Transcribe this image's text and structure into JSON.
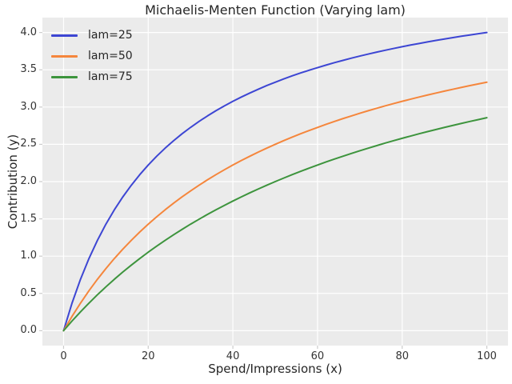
{
  "title": "Michaelis-Menten Function (Varying lam)",
  "colors": {
    "figure_bg": "#ffffff",
    "plot_bg": "#ebebeb",
    "grid": "#ffffff",
    "tick_mark": "#cccccc",
    "text": "#262626"
  },
  "chart_data": {
    "type": "line",
    "title": "Michaelis-Menten Function (Varying lam)",
    "xlabel": "Spend/Impressions (x)",
    "ylabel": "Contribution (y)",
    "xlim": [
      -5,
      105
    ],
    "ylim": [
      -0.2,
      4.2
    ],
    "grid": true,
    "legend_position": "upper-left",
    "xticks": [
      0,
      20,
      40,
      60,
      80,
      100
    ],
    "xtick_labels": [
      "0",
      "20",
      "40",
      "60",
      "80",
      "100"
    ],
    "yticks": [
      0.0,
      0.5,
      1.0,
      1.5,
      2.0,
      2.5,
      3.0,
      3.5,
      4.0
    ],
    "ytick_labels": [
      "0.0",
      "0.5",
      "1.0",
      "1.5",
      "2.0",
      "2.5",
      "3.0",
      "3.5",
      "4.0"
    ],
    "x": [
      0,
      2,
      4,
      6,
      8,
      10,
      12,
      14,
      16,
      18,
      20,
      22,
      24,
      26,
      28,
      30,
      32,
      34,
      36,
      38,
      40,
      42,
      44,
      46,
      48,
      50,
      52,
      54,
      56,
      58,
      60,
      62,
      64,
      66,
      68,
      70,
      72,
      74,
      76,
      78,
      80,
      82,
      84,
      86,
      88,
      90,
      92,
      94,
      96,
      98,
      100
    ],
    "series": [
      {
        "name": "lam=25",
        "color": "#3d46d3",
        "values": [
          0.0,
          0.37,
          0.69,
          0.968,
          1.212,
          1.429,
          1.622,
          1.795,
          1.951,
          2.093,
          2.222,
          2.34,
          2.449,
          2.549,
          2.642,
          2.727,
          2.807,
          2.881,
          2.951,
          3.016,
          3.077,
          3.134,
          3.188,
          3.239,
          3.288,
          3.333,
          3.377,
          3.418,
          3.457,
          3.494,
          3.529,
          3.563,
          3.596,
          3.626,
          3.656,
          3.684,
          3.711,
          3.737,
          3.762,
          3.786,
          3.81,
          3.832,
          3.853,
          3.874,
          3.894,
          3.913,
          3.932,
          3.95,
          3.967,
          3.984,
          4.0
        ]
      },
      {
        "name": "lam=50",
        "color": "#f5863c",
        "values": [
          0.0,
          0.192,
          0.37,
          0.536,
          0.69,
          0.833,
          0.968,
          1.094,
          1.212,
          1.324,
          1.429,
          1.528,
          1.622,
          1.711,
          1.795,
          1.875,
          1.951,
          2.024,
          2.093,
          2.159,
          2.222,
          2.283,
          2.34,
          2.396,
          2.449,
          2.5,
          2.549,
          2.596,
          2.642,
          2.685,
          2.727,
          2.768,
          2.807,
          2.845,
          2.881,
          2.917,
          2.951,
          2.984,
          3.016,
          3.047,
          3.077,
          3.106,
          3.134,
          3.162,
          3.188,
          3.214,
          3.239,
          3.264,
          3.288,
          3.311,
          3.333
        ]
      },
      {
        "name": "lam=75",
        "color": "#3d943d",
        "values": [
          0.0,
          0.13,
          0.253,
          0.37,
          0.482,
          0.588,
          0.69,
          0.787,
          0.879,
          0.968,
          1.053,
          1.134,
          1.212,
          1.287,
          1.359,
          1.429,
          1.495,
          1.56,
          1.622,
          1.681,
          1.739,
          1.795,
          1.849,
          1.901,
          1.951,
          2.0,
          2.047,
          2.093,
          2.137,
          2.18,
          2.222,
          2.263,
          2.302,
          2.34,
          2.378,
          2.414,
          2.449,
          2.483,
          2.517,
          2.549,
          2.581,
          2.611,
          2.642,
          2.671,
          2.699,
          2.727,
          2.754,
          2.781,
          2.807,
          2.832,
          2.857
        ]
      }
    ]
  }
}
